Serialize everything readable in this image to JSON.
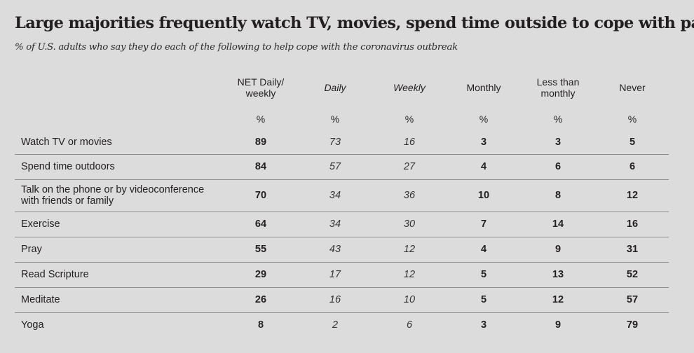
{
  "title": "Large majorities frequently watch TV, movies, spend time outside to cope with pandemic",
  "subtitle": "% of U.S. adults who say they do each of the following to help cope with the coronavirus outbreak",
  "chart_data": {
    "type": "table",
    "title": "Large majorities frequently watch TV, movies, spend time outside to cope with pandemic",
    "subtitle": "% of U.S. adults who say they do each of the following to help cope with the coronavirus outbreak",
    "columns": [
      {
        "label": "NET Daily/ weekly",
        "line1": "NET Daily/",
        "line2": "weekly",
        "unit": "%",
        "style": "bold"
      },
      {
        "label": "Daily",
        "line1": "Daily",
        "line2": "",
        "unit": "%",
        "style": "italic"
      },
      {
        "label": "Weekly",
        "line1": "Weekly",
        "line2": "",
        "unit": "%",
        "style": "italic"
      },
      {
        "label": "Monthly",
        "line1": "Monthly",
        "line2": "",
        "unit": "%",
        "style": "bold"
      },
      {
        "label": "Less than monthly",
        "line1": "Less than",
        "line2": "monthly",
        "unit": "%",
        "style": "bold"
      },
      {
        "label": "Never",
        "line1": "Never",
        "line2": "",
        "unit": "%",
        "style": "bold"
      }
    ],
    "rows": [
      {
        "label": "Watch TV or movies",
        "line1": "Watch TV or movies",
        "line2": "",
        "values": [
          89,
          73,
          16,
          3,
          3,
          5
        ]
      },
      {
        "label": "Spend time outdoors",
        "line1": "Spend time outdoors",
        "line2": "",
        "values": [
          84,
          57,
          27,
          4,
          6,
          6
        ]
      },
      {
        "label": "Talk on the phone or by videoconference with friends or family",
        "line1": "Talk on the phone or by videoconference",
        "line2": "with friends or family",
        "values": [
          70,
          34,
          36,
          10,
          8,
          12
        ]
      },
      {
        "label": "Exercise",
        "line1": "Exercise",
        "line2": "",
        "values": [
          64,
          34,
          30,
          7,
          14,
          16
        ]
      },
      {
        "label": "Pray",
        "line1": "Pray",
        "line2": "",
        "values": [
          55,
          43,
          12,
          4,
          9,
          31
        ]
      },
      {
        "label": "Read Scripture",
        "line1": "Read Scripture",
        "line2": "",
        "values": [
          29,
          17,
          12,
          5,
          13,
          52
        ]
      },
      {
        "label": "Meditate",
        "line1": "Meditate",
        "line2": "",
        "values": [
          26,
          16,
          10,
          5,
          12,
          57
        ]
      },
      {
        "label": "Yoga",
        "line1": "Yoga",
        "line2": "",
        "values": [
          8,
          2,
          6,
          3,
          9,
          79
        ]
      }
    ]
  }
}
